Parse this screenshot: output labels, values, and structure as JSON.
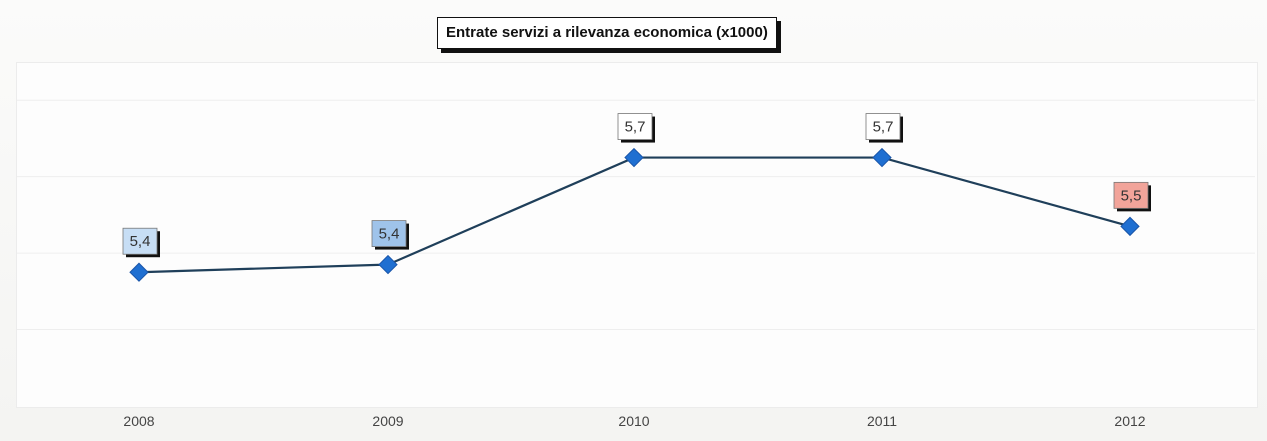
{
  "chart_data": {
    "type": "line",
    "title": "Entrate servizi a rilevanza economica (x1000)",
    "categories": [
      "2008",
      "2009",
      "2010",
      "2011",
      "2012"
    ],
    "series": [
      {
        "values": [
          5.35,
          5.37,
          5.65,
          5.65,
          5.47
        ]
      }
    ],
    "data_labels": [
      "5,4",
      "5,4",
      "5,7",
      "5,7",
      "5,5"
    ],
    "label_colors": [
      "#c7def5",
      "#9fc3ea",
      "#ffffff",
      "#ffffff",
      "#f2a49a"
    ],
    "line_color": "#1f3f5a",
    "marker_color": "#1f6fd1",
    "ylim": [
      5.0,
      5.9
    ],
    "grid": true,
    "xlabel": "",
    "ylabel": ""
  }
}
